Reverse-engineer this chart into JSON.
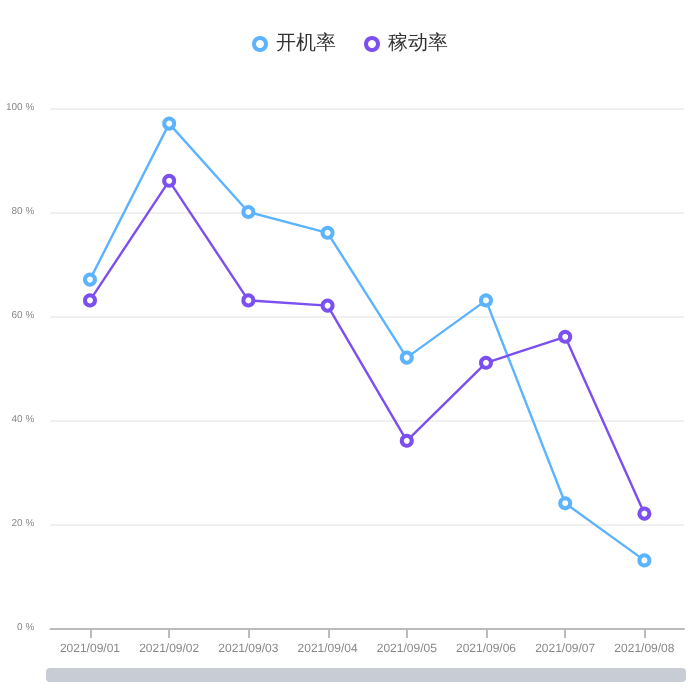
{
  "chart_data": {
    "type": "line",
    "categories": [
      "2021/09/01",
      "2021/09/02",
      "2021/09/03",
      "2021/09/04",
      "2021/09/05",
      "2021/09/06",
      "2021/09/07",
      "2021/09/08"
    ],
    "series": [
      {
        "name": "开机率",
        "color": "#5cb3ff",
        "values": [
          67,
          97,
          80,
          76,
          52,
          63,
          24,
          13
        ]
      },
      {
        "name": "稼动率",
        "color": "#7b4ff0",
        "values": [
          63,
          86,
          63,
          62,
          36,
          51,
          56,
          22
        ]
      }
    ],
    "ylim": [
      0,
      100
    ],
    "yticks": [
      {
        "value": 0,
        "label": "0 %"
      },
      {
        "value": 20,
        "label": "20 %"
      },
      {
        "value": 40,
        "label": "40 %"
      },
      {
        "value": 60,
        "label": "60 %"
      },
      {
        "value": 80,
        "label": "80 %"
      },
      {
        "value": 100,
        "label": "100 %"
      }
    ],
    "grid": "y",
    "legend": "top",
    "marker": "circle",
    "line_style": "solid"
  }
}
